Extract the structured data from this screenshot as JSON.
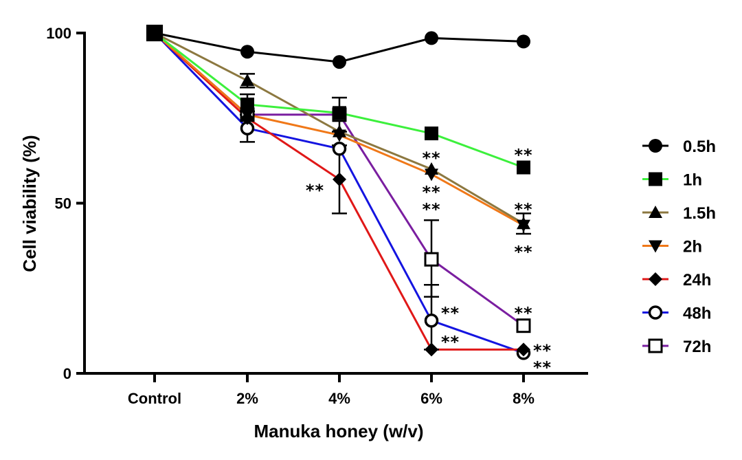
{
  "chart_data": {
    "type": "line",
    "xlabel": "Manuka honey (w/v)",
    "ylabel": "Cell viability (%)",
    "categories": [
      "Control",
      "2%",
      "4%",
      "6%",
      "8%"
    ],
    "ylim": [
      0,
      100
    ],
    "yticks": [
      0,
      50,
      100
    ],
    "grid": false,
    "legend_position": "right",
    "series": [
      {
        "name": "0.5h",
        "color": "#000000",
        "marker": "circle",
        "values": [
          100,
          94.5,
          91.5,
          98.5,
          97.5
        ]
      },
      {
        "name": "1h",
        "color": "#3cf03c",
        "marker": "square",
        "values": [
          100,
          79,
          76.5,
          70.5,
          60.5
        ]
      },
      {
        "name": "1.5h",
        "color": "#8c7840",
        "marker": "triangle-up",
        "values": [
          100,
          86,
          71,
          60,
          44
        ]
      },
      {
        "name": "2h",
        "color": "#f07818",
        "marker": "triangle-down",
        "values": [
          100,
          76,
          70,
          58.5,
          43.5
        ]
      },
      {
        "name": "24h",
        "color": "#e01818",
        "marker": "diamond",
        "values": [
          100,
          75,
          57,
          7,
          7
        ]
      },
      {
        "name": "48h",
        "color": "#1414e0",
        "marker": "circle-open",
        "values": [
          100,
          72,
          66,
          15.5,
          6
        ]
      },
      {
        "name": "72h",
        "color": "#7a1ea0",
        "marker": "square-open",
        "values": [
          100,
          76,
          76,
          33.5,
          14
        ]
      }
    ],
    "error_bars": [
      {
        "x": "2%",
        "y": 72,
        "low": 68,
        "high": 76
      },
      {
        "x": "2%",
        "y": 79,
        "low": 77,
        "high": 82
      },
      {
        "x": "2%",
        "y": 86,
        "low": 84,
        "high": 88
      },
      {
        "x": "4%",
        "y": 57,
        "low": 47,
        "high": 67
      },
      {
        "x": "4%",
        "y": 76,
        "low": 71,
        "high": 81
      },
      {
        "x": "6%",
        "y": 33.5,
        "low": 22.5,
        "high": 45
      },
      {
        "x": "6%",
        "y": 15.5,
        "low": 7,
        "high": 26
      },
      {
        "x": "8%",
        "y": 44,
        "low": 41,
        "high": 47
      }
    ],
    "annotations": [
      {
        "text": "**",
        "x": "4%",
        "y": 54.5,
        "side": "left"
      },
      {
        "text": "**",
        "x": "6%",
        "y": 64,
        "side": "center"
      },
      {
        "text": "**",
        "x": "6%",
        "y": 54,
        "side": "center"
      },
      {
        "text": "**",
        "x": "6%",
        "y": 49,
        "side": "center"
      },
      {
        "text": "**",
        "x": "6%",
        "y": 18.5,
        "side": "right"
      },
      {
        "text": "**",
        "x": "6%",
        "y": 10,
        "side": "right"
      },
      {
        "text": "**",
        "x": "8%",
        "y": 65,
        "side": "center"
      },
      {
        "text": "**",
        "x": "8%",
        "y": 49,
        "side": "center"
      },
      {
        "text": "**",
        "x": "8%",
        "y": 36.5,
        "side": "center"
      },
      {
        "text": "**",
        "x": "8%",
        "y": 18.5,
        "side": "center"
      },
      {
        "text": "**",
        "x": "8%",
        "y": 7.5,
        "side": "right"
      },
      {
        "text": "**",
        "x": "8%",
        "y": 2.5,
        "side": "right"
      }
    ]
  }
}
